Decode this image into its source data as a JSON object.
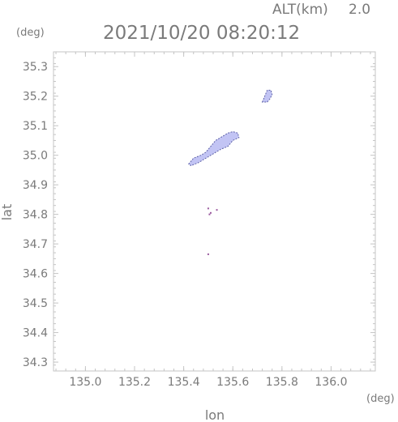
{
  "header": {
    "altitude_label": "ALT(km)",
    "altitude_value": "2.0",
    "timestamp": "2021/10/20 08:20:12"
  },
  "chart_data": {
    "type": "scatter",
    "title": "2021/10/20 08:20:12",
    "xlabel": "lon",
    "ylabel": "lat",
    "x_unit": "(deg)",
    "y_unit": "(deg)",
    "xlim": [
      134.87,
      136.18
    ],
    "ylim": [
      34.27,
      35.35
    ],
    "xticks": [
      135.0,
      135.2,
      135.4,
      135.6,
      135.8,
      136.0
    ],
    "xtick_labels": [
      "135.0",
      "135.2",
      "135.4",
      "135.6",
      "135.8",
      "136.0"
    ],
    "yticks": [
      34.3,
      34.4,
      34.5,
      34.6,
      34.7,
      34.8,
      34.9,
      35.0,
      35.1,
      35.2,
      35.3
    ],
    "ytick_labels": [
      "34.3",
      "34.4",
      "34.5",
      "34.6",
      "34.7",
      "34.8",
      "34.9",
      "35.0",
      "35.1",
      "35.2",
      "35.3"
    ],
    "grid": false,
    "series": [
      {
        "color": "#c2c4f4",
        "edge_color": "#5c60a8",
        "regions": [
          {
            "points": [
              [
                135.42,
                34.97
              ],
              [
                135.44,
                34.99
              ],
              [
                135.47,
                35.0
              ],
              [
                135.49,
                35.01
              ],
              [
                135.51,
                35.03
              ],
              [
                135.53,
                35.05
              ],
              [
                135.55,
                35.06
              ],
              [
                135.58,
                35.075
              ],
              [
                135.6,
                35.08
              ],
              [
                135.62,
                35.075
              ],
              [
                135.625,
                35.06
              ],
              [
                135.6,
                35.05
              ],
              [
                135.58,
                35.03
              ],
              [
                135.55,
                35.02
              ],
              [
                135.52,
                35.005
              ],
              [
                135.49,
                34.99
              ],
              [
                135.46,
                34.975
              ],
              [
                135.43,
                34.965
              ]
            ]
          },
          {
            "points": [
              [
                135.72,
                35.18
              ],
              [
                135.73,
                35.2
              ],
              [
                135.74,
                35.22
              ],
              [
                135.755,
                35.22
              ],
              [
                135.76,
                35.205
              ],
              [
                135.75,
                35.19
              ],
              [
                135.74,
                35.18
              ]
            ]
          }
        ]
      },
      {
        "color": "#9a5a9e",
        "points": [
          [
            135.5,
            34.82
          ],
          [
            135.505,
            34.8
          ],
          [
            135.51,
            34.805
          ],
          [
            135.535,
            34.815
          ],
          [
            135.5,
            34.665
          ]
        ]
      }
    ]
  }
}
